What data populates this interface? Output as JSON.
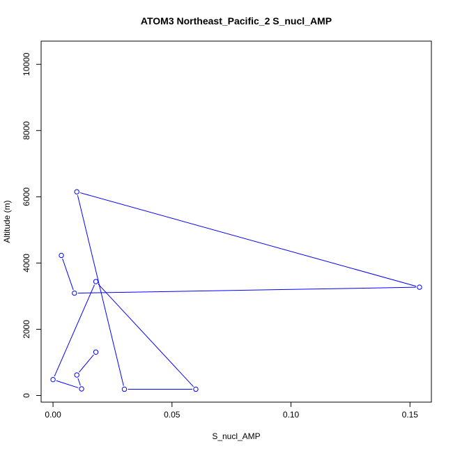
{
  "chart_data": {
    "type": "line",
    "title": "ATOM3 Northeast_Pacific_2 S_nucl_AMP",
    "xlabel": "S_nucl_AMP",
    "ylabel": "Altitude (m)",
    "xlim": [
      -0.005,
      0.159
    ],
    "ylim": [
      -200,
      10700
    ],
    "xticks": [
      0.0,
      0.05,
      0.1,
      0.15
    ],
    "xtick_labels": [
      "0.00",
      "0.05",
      "0.10",
      "0.15"
    ],
    "yticks": [
      0,
      2000,
      4000,
      6000,
      8000,
      10000
    ],
    "ytick_labels": [
      "0",
      "2000",
      "4000",
      "6000",
      "8000",
      "10000"
    ],
    "grid": false,
    "legend": "none",
    "series": [
      {
        "color": "#0000ff",
        "marker": "open-circle",
        "points": [
          {
            "x": 0.0035,
            "y": 4230
          },
          {
            "x": 0.009,
            "y": 3090
          },
          {
            "x": 0.154,
            "y": 3270
          },
          {
            "x": 0.01,
            "y": 6150
          },
          {
            "x": 0.03,
            "y": 190
          },
          {
            "x": 0.06,
            "y": 190
          },
          {
            "x": 0.018,
            "y": 3440
          },
          {
            "x": 0.0,
            "y": 480
          },
          {
            "x": 0.012,
            "y": 200
          },
          {
            "x": 0.01,
            "y": 620
          },
          {
            "x": 0.018,
            "y": 1310
          }
        ]
      }
    ]
  }
}
